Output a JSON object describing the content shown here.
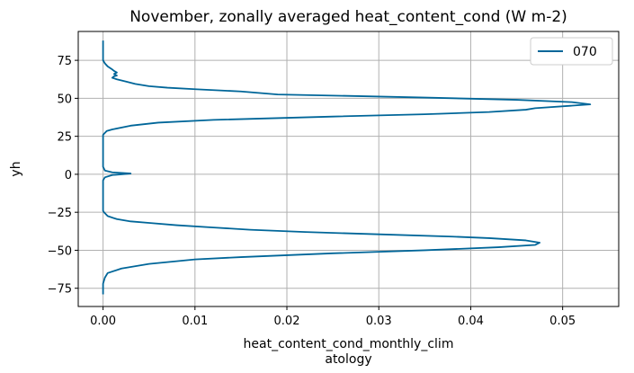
{
  "chart_data": {
    "type": "line",
    "title": "November, zonally averaged heat_content_cond (W m-2)",
    "xlabel_lines": [
      "heat_content_cond_monthly_clim",
      "atology"
    ],
    "ylabel": "yh",
    "xlim": [
      -0.0027,
      0.0561
    ],
    "ylim": [
      -87,
      94
    ],
    "xticks": [
      0.0,
      0.01,
      0.02,
      0.03,
      0.04,
      0.05
    ],
    "xtick_labels": [
      "0.00",
      "0.01",
      "0.02",
      "0.03",
      "0.04",
      "0.05"
    ],
    "yticks": [
      -75,
      -50,
      -25,
      0,
      25,
      50,
      75
    ],
    "ytick_labels": [
      "−75",
      "−50",
      "−25",
      "0",
      "25",
      "50",
      "75"
    ],
    "grid": true,
    "legend_position": "top-right",
    "series": [
      {
        "name": "070",
        "color": "#006699",
        "points": [
          [
            0.0,
            -79
          ],
          [
            0.0,
            -72
          ],
          [
            0.0002,
            -68
          ],
          [
            0.0005,
            -65
          ],
          [
            0.002,
            -62
          ],
          [
            0.005,
            -59
          ],
          [
            0.01,
            -56
          ],
          [
            0.015,
            -54.5
          ],
          [
            0.025,
            -52
          ],
          [
            0.035,
            -50
          ],
          [
            0.043,
            -48
          ],
          [
            0.047,
            -46.5
          ],
          [
            0.0475,
            -45
          ],
          [
            0.046,
            -43.5
          ],
          [
            0.042,
            -42
          ],
          [
            0.038,
            -41
          ],
          [
            0.03,
            -39.5
          ],
          [
            0.022,
            -38
          ],
          [
            0.016,
            -36.5
          ],
          [
            0.012,
            -35
          ],
          [
            0.008,
            -33.5
          ],
          [
            0.005,
            -32
          ],
          [
            0.003,
            -31
          ],
          [
            0.0015,
            -29.5
          ],
          [
            0.0005,
            -27.5
          ],
          [
            0.0001,
            -25
          ],
          [
            0.0,
            -24
          ],
          [
            0.0,
            -20
          ],
          [
            0.0,
            -14
          ],
          [
            0.0,
            -8
          ],
          [
            0.0,
            -4
          ],
          [
            0.0002,
            -2
          ],
          [
            0.001,
            -0.5
          ],
          [
            0.003,
            0.5
          ],
          [
            0.001,
            1.3
          ],
          [
            0.0002,
            2.5
          ],
          [
            0.0,
            5
          ],
          [
            0.0,
            12
          ],
          [
            0.0,
            20
          ],
          [
            0.0,
            26
          ],
          [
            0.0004,
            28.5
          ],
          [
            0.001,
            29.5
          ],
          [
            0.003,
            32
          ],
          [
            0.006,
            34
          ],
          [
            0.012,
            35.8
          ],
          [
            0.025,
            38
          ],
          [
            0.035,
            39.5
          ],
          [
            0.042,
            41
          ],
          [
            0.046,
            42.5
          ],
          [
            0.047,
            43.5
          ],
          [
            0.053,
            46
          ],
          [
            0.051,
            47.5
          ],
          [
            0.045,
            49
          ],
          [
            0.035,
            50.5
          ],
          [
            0.025,
            51.8
          ],
          [
            0.019,
            52.5
          ],
          [
            0.015,
            54.5
          ],
          [
            0.01,
            56
          ],
          [
            0.007,
            57
          ],
          [
            0.005,
            58
          ],
          [
            0.0035,
            59.5
          ],
          [
            0.0025,
            61
          ],
          [
            0.0015,
            62.5
          ],
          [
            0.001,
            63.5
          ],
          [
            0.0012,
            64.5
          ],
          [
            0.0015,
            65
          ],
          [
            0.0012,
            66
          ],
          [
            0.0015,
            67
          ],
          [
            0.0012,
            68
          ],
          [
            0.001,
            69
          ],
          [
            0.0005,
            71
          ],
          [
            0.0002,
            73
          ],
          [
            0.0,
            75
          ],
          [
            0.0,
            79
          ],
          [
            0.0,
            83
          ],
          [
            0.0,
            88
          ]
        ]
      }
    ]
  }
}
